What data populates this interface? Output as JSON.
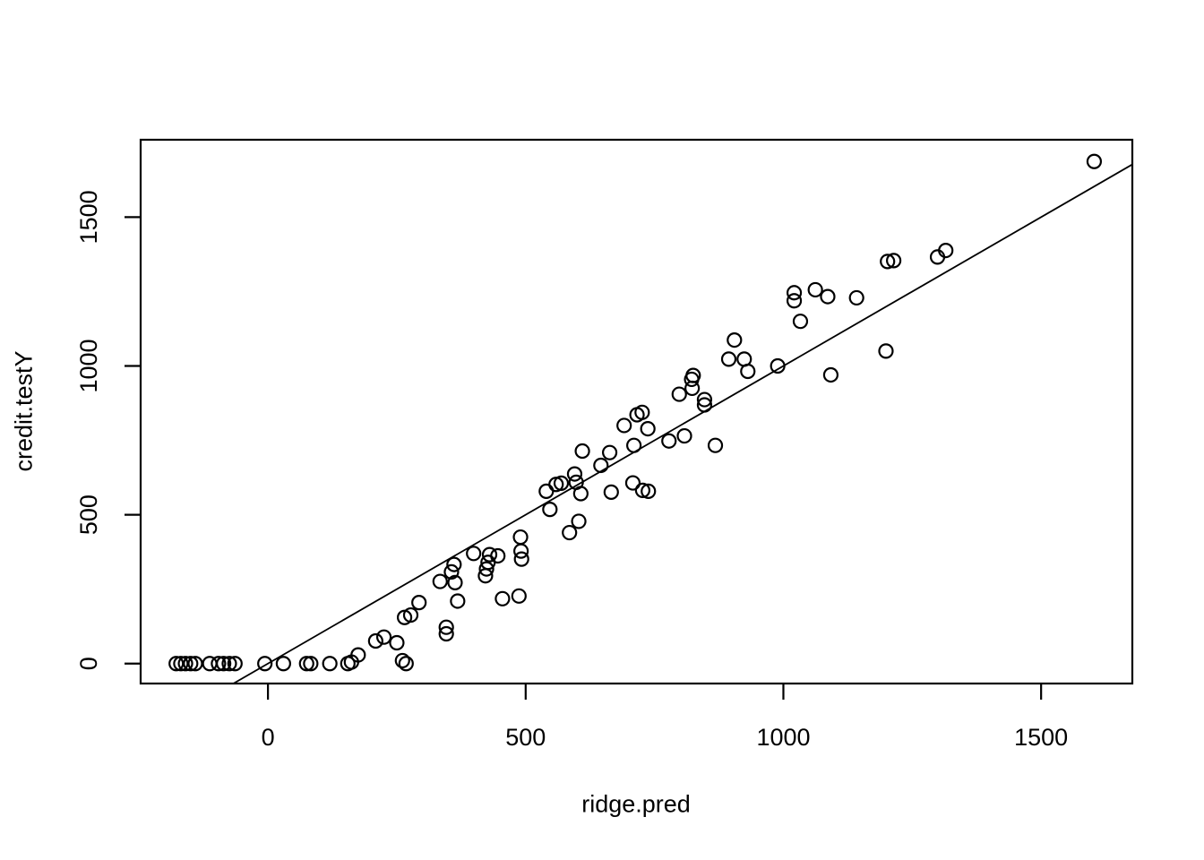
{
  "figure": {
    "background": "#ffffff",
    "foreground": "#000000"
  },
  "chart_data": {
    "type": "scatter",
    "xlabel": "ridge.pred",
    "ylabel": "credit.testY",
    "x_ticks": [
      0,
      500,
      1000,
      1500
    ],
    "y_ticks": [
      0,
      500,
      1000,
      1500
    ],
    "xlim": [
      -247,
      1677
    ],
    "ylim": [
      -67,
      1760
    ],
    "grid": false,
    "legend": "none",
    "marker": "open-circle",
    "reference_line": {
      "type": "abline",
      "intercept": 0,
      "slope": 1
    },
    "points": [
      [
        -178,
        0
      ],
      [
        -169,
        0
      ],
      [
        -160,
        0
      ],
      [
        -150,
        0
      ],
      [
        -141,
        0
      ],
      [
        -113,
        0
      ],
      [
        -96,
        0
      ],
      [
        -86,
        0
      ],
      [
        -75,
        0
      ],
      [
        -64,
        0
      ],
      [
        -6,
        0
      ],
      [
        30,
        0
      ],
      [
        75,
        0
      ],
      [
        83,
        0
      ],
      [
        120,
        0
      ],
      [
        155,
        0
      ],
      [
        162,
        5
      ],
      [
        175,
        29
      ],
      [
        209,
        76
      ],
      [
        225,
        89
      ],
      [
        250,
        70
      ],
      [
        261,
        10
      ],
      [
        268,
        0
      ],
      [
        265,
        155
      ],
      [
        277,
        163
      ],
      [
        293,
        205
      ],
      [
        334,
        276
      ],
      [
        346,
        122
      ],
      [
        346,
        100
      ],
      [
        356,
        308
      ],
      [
        361,
        333
      ],
      [
        363,
        272
      ],
      [
        368,
        210
      ],
      [
        399,
        370
      ],
      [
        422,
        295
      ],
      [
        424,
        318
      ],
      [
        427,
        340
      ],
      [
        430,
        366
      ],
      [
        446,
        362
      ],
      [
        455,
        218
      ],
      [
        487,
        227
      ],
      [
        490,
        425
      ],
      [
        491,
        378
      ],
      [
        492,
        351
      ],
      [
        540,
        579
      ],
      [
        547,
        518
      ],
      [
        559,
        602
      ],
      [
        569,
        606
      ],
      [
        585,
        440
      ],
      [
        595,
        637
      ],
      [
        598,
        609
      ],
      [
        603,
        478
      ],
      [
        607,
        571
      ],
      [
        610,
        714
      ],
      [
        646,
        666
      ],
      [
        663,
        709
      ],
      [
        666,
        576
      ],
      [
        691,
        800
      ],
      [
        708,
        607
      ],
      [
        710,
        733
      ],
      [
        716,
        836
      ],
      [
        726,
        844
      ],
      [
        727,
        582
      ],
      [
        737,
        789
      ],
      [
        738,
        579
      ],
      [
        778,
        748
      ],
      [
        798,
        905
      ],
      [
        808,
        765
      ],
      [
        822,
        955
      ],
      [
        825,
        968
      ],
      [
        823,
        925
      ],
      [
        847,
        869
      ],
      [
        847,
        887
      ],
      [
        868,
        733
      ],
      [
        894,
        1023
      ],
      [
        905,
        1087
      ],
      [
        924,
        1023
      ],
      [
        931,
        982
      ],
      [
        989,
        1000
      ],
      [
        1021,
        1219
      ],
      [
        1021,
        1246
      ],
      [
        1033,
        1150
      ],
      [
        1062,
        1256
      ],
      [
        1086,
        1233
      ],
      [
        1092,
        970
      ],
      [
        1142,
        1229
      ],
      [
        1199,
        1050
      ],
      [
        1202,
        1351
      ],
      [
        1214,
        1354
      ],
      [
        1299,
        1366
      ],
      [
        1315,
        1388
      ],
      [
        1603,
        1687
      ]
    ]
  }
}
